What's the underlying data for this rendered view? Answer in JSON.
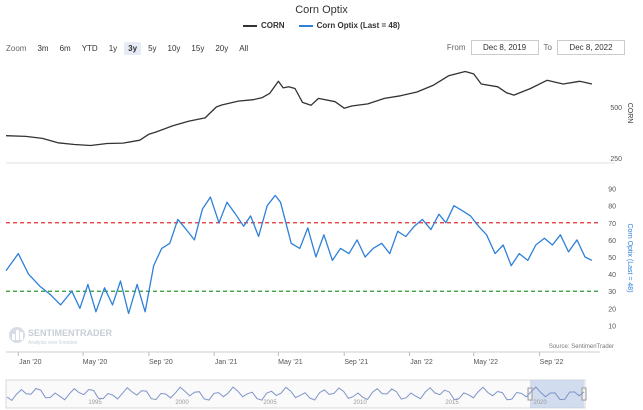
{
  "title": "Corn Optix",
  "legend": {
    "corn": "CORN",
    "optix": "Corn Optix (Last = 48)"
  },
  "zoom": {
    "label": "Zoom",
    "buttons": [
      "3m",
      "6m",
      "YTD",
      "1y",
      "3y",
      "5y",
      "10y",
      "15y",
      "20y",
      "All"
    ],
    "active": "3y"
  },
  "range": {
    "from_label": "From",
    "from_value": "Dec 8, 2019",
    "to_label": "To",
    "to_value": "Dec 8, 2022"
  },
  "watermark": {
    "name": "SENTIMENTRADER",
    "tagline": "Analysis over Emotion"
  },
  "credit": "Source: SentimenTrader",
  "colors": {
    "corn": "#333333",
    "optix": "#2f80d9",
    "upper_line": "#e03030",
    "lower_line": "#2a9a2a",
    "navigator": "#7f95c9"
  },
  "chart_data": [
    {
      "type": "line",
      "name": "CORN",
      "ylabel": "CORN",
      "yticks": [
        500,
        250
      ],
      "ylim": [
        250,
        800
      ],
      "scale": "log",
      "x": [
        "2019-12-09",
        "2020-01-15",
        "2020-02-15",
        "2020-03-15",
        "2020-04-15",
        "2020-05-15",
        "2020-06-15",
        "2020-07-15",
        "2020-08-15",
        "2020-09-01",
        "2020-09-15",
        "2020-10-15",
        "2020-11-15",
        "2020-12-15",
        "2021-01-05",
        "2021-01-15",
        "2021-02-15",
        "2021-03-15",
        "2021-04-01",
        "2021-04-15",
        "2021-05-01",
        "2021-05-10",
        "2021-05-20",
        "2021-06-01",
        "2021-06-15",
        "2021-07-01",
        "2021-07-15",
        "2021-08-15",
        "2021-09-01",
        "2021-09-15",
        "2021-10-15",
        "2021-11-15",
        "2021-12-15",
        "2022-01-15",
        "2022-02-15",
        "2022-03-15",
        "2022-04-15",
        "2022-05-01",
        "2022-05-15",
        "2022-06-15",
        "2022-07-01",
        "2022-07-15",
        "2022-08-15",
        "2022-09-15",
        "2022-10-15",
        "2022-11-15",
        "2022-12-08"
      ],
      "y": [
        338,
        335,
        326,
        307,
        300,
        296,
        304,
        306,
        318,
        345,
        356,
        386,
        412,
        430,
        498,
        512,
        540,
        550,
        566,
        600,
        705,
        645,
        655,
        640,
        530,
        510,
        560,
        535,
        490,
        505,
        520,
        560,
        580,
        610,
        670,
        760,
        805,
        780,
        680,
        655,
        605,
        585,
        640,
        715,
        680,
        705,
        680
      ]
    },
    {
      "type": "line",
      "name": "Corn Optix (Last = 48)",
      "ylabel": "Corn Optix (Last = 48)",
      "yticks": [
        90,
        80,
        70,
        60,
        50,
        40,
        30,
        20,
        10
      ],
      "ylim": [
        5,
        95
      ],
      "reference_lines": [
        70,
        30
      ],
      "x": [
        "2019-12-09",
        "2020-01-01",
        "2020-01-20",
        "2020-02-10",
        "2020-03-01",
        "2020-03-20",
        "2020-04-10",
        "2020-04-25",
        "2020-05-10",
        "2020-05-25",
        "2020-06-10",
        "2020-06-25",
        "2020-07-10",
        "2020-07-25",
        "2020-08-10",
        "2020-08-25",
        "2020-09-10",
        "2020-09-25",
        "2020-10-10",
        "2020-10-25",
        "2020-11-10",
        "2020-11-25",
        "2020-12-10",
        "2020-12-25",
        "2021-01-10",
        "2021-01-25",
        "2021-02-10",
        "2021-02-25",
        "2021-03-10",
        "2021-03-25",
        "2021-04-10",
        "2021-04-25",
        "2021-05-05",
        "2021-05-15",
        "2021-05-25",
        "2021-06-10",
        "2021-06-25",
        "2021-07-10",
        "2021-07-25",
        "2021-08-10",
        "2021-08-25",
        "2021-09-10",
        "2021-09-25",
        "2021-10-10",
        "2021-10-25",
        "2021-11-10",
        "2021-11-25",
        "2021-12-10",
        "2021-12-25",
        "2022-01-10",
        "2022-01-25",
        "2022-02-10",
        "2022-02-25",
        "2022-03-10",
        "2022-03-25",
        "2022-04-10",
        "2022-04-25",
        "2022-05-10",
        "2022-05-25",
        "2022-06-10",
        "2022-06-25",
        "2022-07-10",
        "2022-07-25",
        "2022-08-10",
        "2022-08-25",
        "2022-09-10",
        "2022-09-25",
        "2022-10-10",
        "2022-10-25",
        "2022-11-10",
        "2022-11-25",
        "2022-12-08"
      ],
      "y": [
        42,
        52,
        40,
        33,
        28,
        22,
        30,
        20,
        34,
        18,
        32,
        22,
        36,
        17,
        34,
        18,
        45,
        55,
        58,
        72,
        66,
        60,
        78,
        85,
        70,
        82,
        75,
        68,
        74,
        62,
        80,
        86,
        82,
        70,
        58,
        55,
        67,
        50,
        63,
        48,
        55,
        52,
        60,
        50,
        55,
        58,
        52,
        65,
        62,
        68,
        72,
        66,
        75,
        70,
        80,
        77,
        74,
        68,
        63,
        52,
        57,
        45,
        52,
        48,
        57,
        61,
        57,
        63,
        53,
        60,
        50,
        48
      ]
    }
  ],
  "navigator": {
    "labels": [
      "1995",
      "2000",
      "2005",
      "2010",
      "2015",
      "2020"
    ]
  }
}
